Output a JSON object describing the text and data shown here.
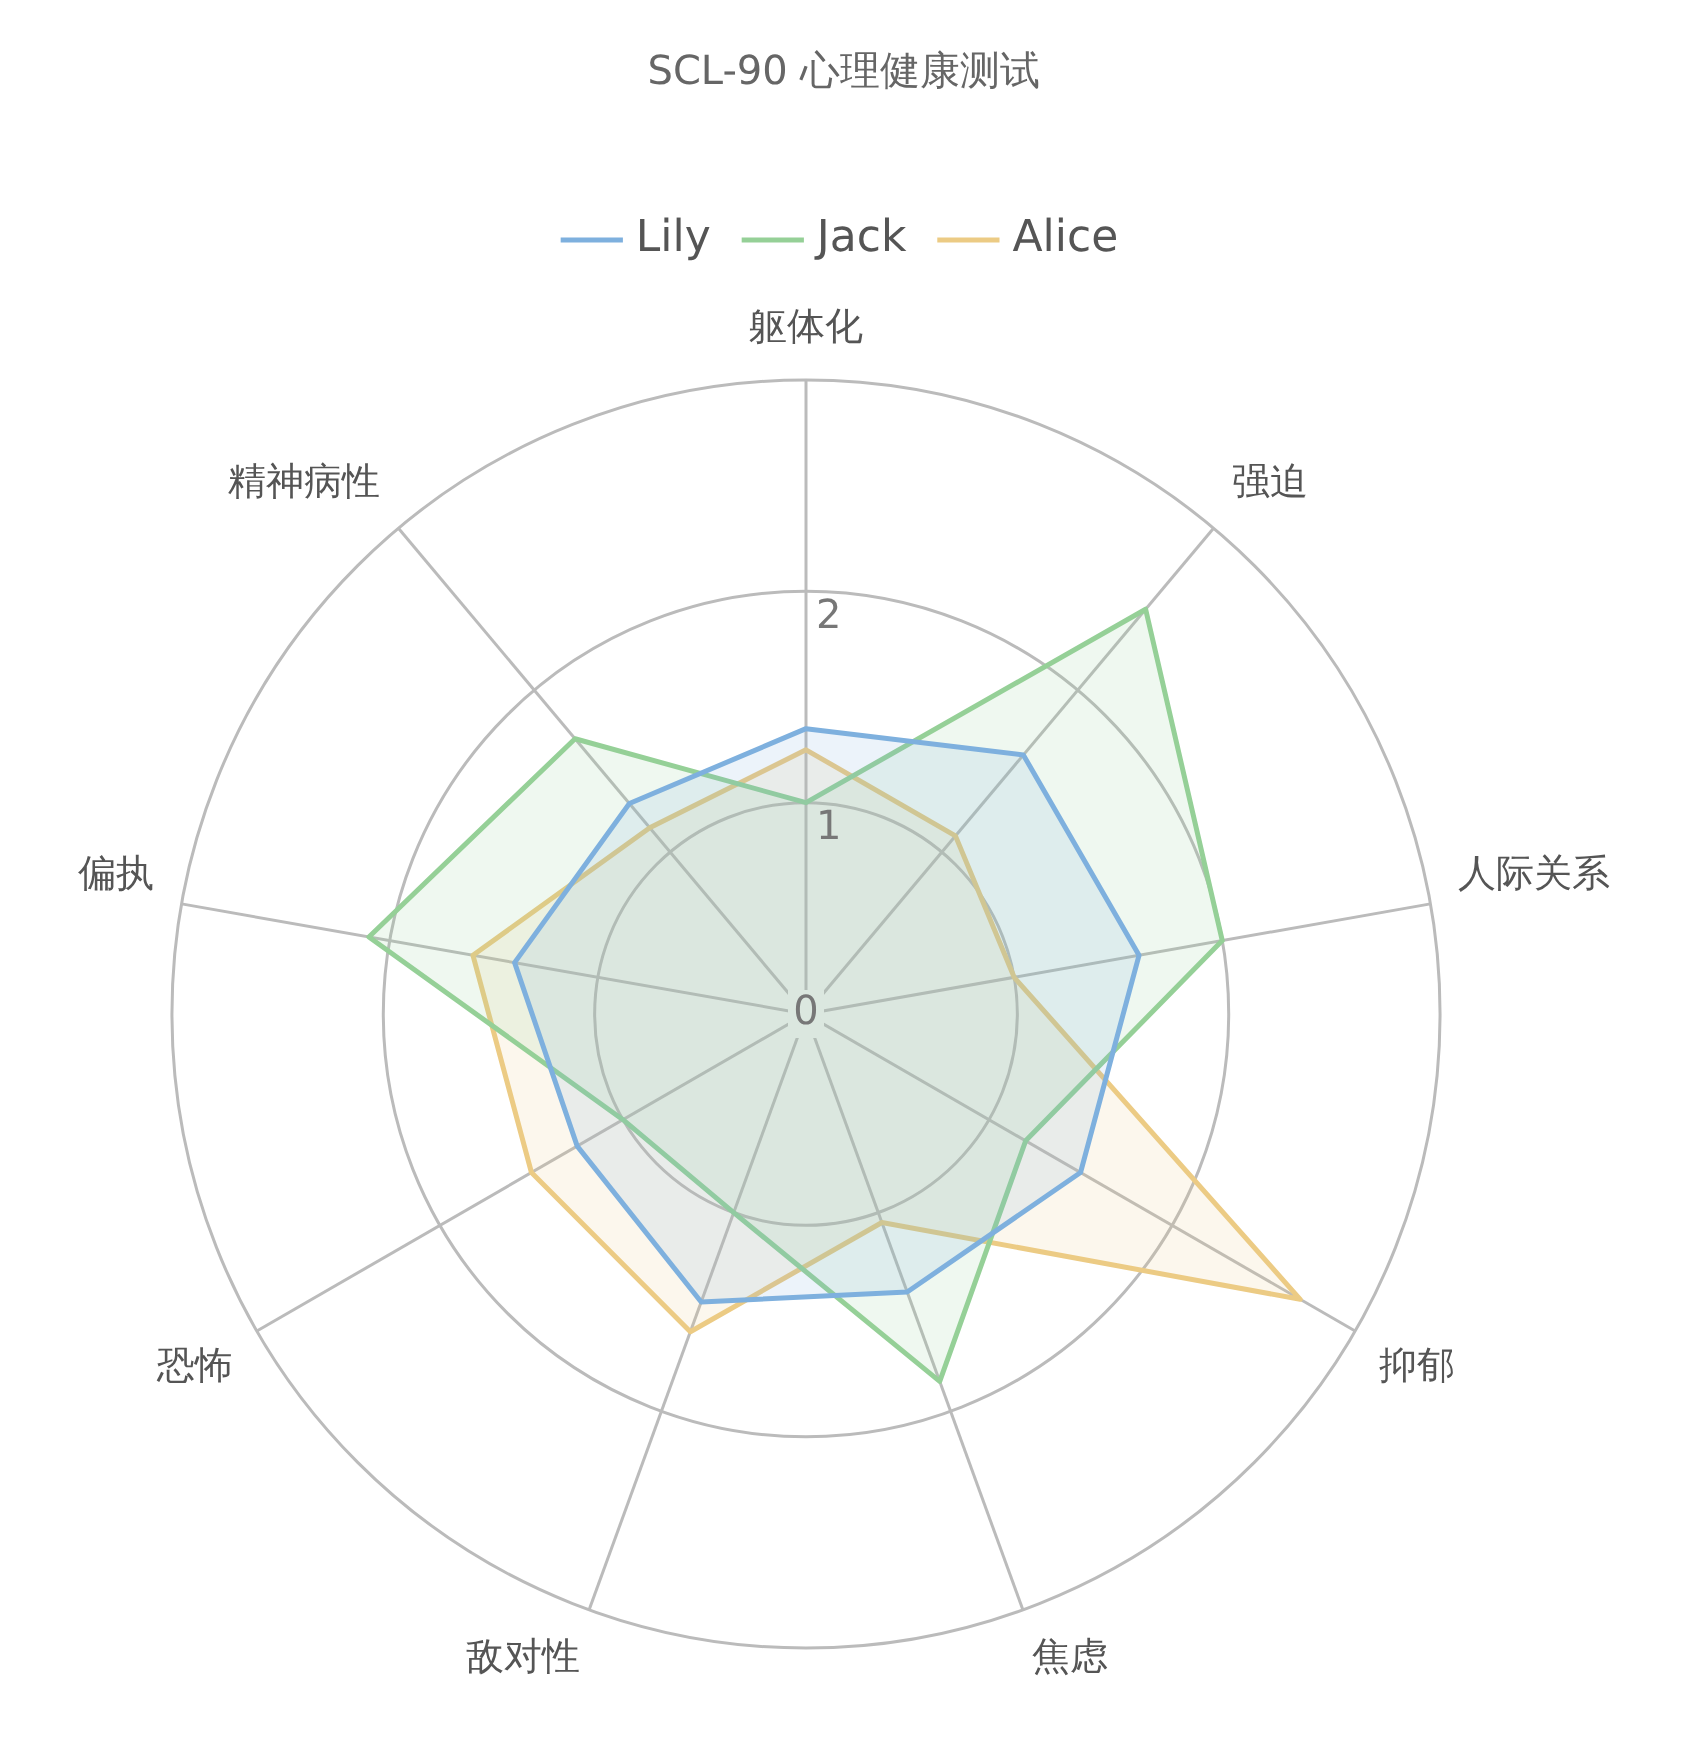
{
  "chart_data": {
    "type": "radar",
    "title": "SCL-90 心理健康测试",
    "categories": [
      "躯体化",
      "强迫",
      "人际关系",
      "抑郁",
      "焦虑",
      "敌对性",
      "恐怖",
      "偏执",
      "精神病性"
    ],
    "series": [
      {
        "name": "Lily",
        "color": "#7eb0de",
        "values": [
          1.35,
          1.6,
          1.6,
          1.5,
          1.4,
          1.45,
          1.25,
          1.4,
          1.3
        ]
      },
      {
        "name": "Jack",
        "color": "#95d097",
        "values": [
          1.0,
          2.5,
          2.0,
          1.2,
          1.85,
          1.0,
          1.0,
          2.1,
          1.7
        ]
      },
      {
        "name": "Alice",
        "color": "#eccb84",
        "values": [
          1.25,
          1.1,
          1.0,
          2.7,
          1.05,
          1.6,
          1.5,
          1.6,
          1.15
        ]
      }
    ],
    "ylim": [
      0,
      3
    ],
    "yticks": [
      0,
      1,
      2
    ],
    "legend": "top",
    "grid": true,
    "marker": "none"
  }
}
